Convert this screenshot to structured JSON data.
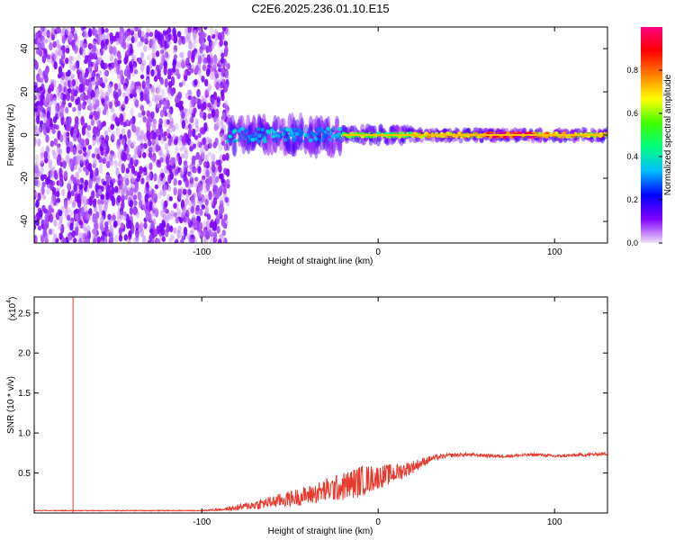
{
  "title": "C2E6.2025.236.01.10.E15",
  "chart_data": [
    {
      "type": "heatmap",
      "name": "spectrogram",
      "xlabel": "Height of straight line (km)",
      "ylabel": "Frequency (Hz)",
      "xlim": [
        -195,
        130
      ],
      "ylim": [
        -50,
        50
      ],
      "xticks": [
        -100,
        0,
        100
      ],
      "yticks": [
        -40,
        -20,
        0,
        20,
        40
      ],
      "colorbar": {
        "label": "Normalized spectral amplitude",
        "range": [
          0.0,
          1.0
        ],
        "ticks": [
          0.0,
          0.2,
          0.4,
          0.6,
          0.8
        ],
        "colormap": [
          "#f0e0f8",
          "#8000ff",
          "#0000ff",
          "#00c0ff",
          "#00ff80",
          "#40ff00",
          "#ffff00",
          "#ff8000",
          "#ff0000",
          "#ff0080"
        ]
      },
      "regions": [
        {
          "x_range": [
            -195,
            -85
          ],
          "freq_range": [
            -50,
            50
          ],
          "amplitude": 0.1,
          "description": "broadband noise"
        },
        {
          "x_range": [
            -85,
            -20
          ],
          "freq_center": 0,
          "freq_halfwidth": 8,
          "amplitude": 0.35
        },
        {
          "x_range": [
            -20,
            20
          ],
          "freq_center": 0,
          "freq_halfwidth": 4,
          "amplitude": 0.6
        },
        {
          "x_range": [
            20,
            130
          ],
          "freq_center": 0,
          "freq_halfwidth": 3,
          "amplitude": 0.75
        },
        {
          "x_range": [
            60,
            90
          ],
          "freq_center": 0,
          "freq_halfwidth": 1,
          "amplitude": 0.95
        }
      ]
    },
    {
      "type": "line",
      "name": "snr",
      "xlabel": "Height of straight line (km)",
      "ylabel": "SNR (10 * v/v)",
      "ymultiplier": "(x10",
      "ymultiplier_exp": "4",
      "ymultiplier_close": ")",
      "xlim": [
        -195,
        130
      ],
      "ylim": [
        0,
        2.7
      ],
      "xticks": [
        -100,
        0,
        100
      ],
      "yticks": [
        0.5,
        1.0,
        1.5,
        2.0,
        2.5
      ],
      "ytick_labels": [
        "0.5",
        "1.0",
        "1.5",
        "2.0",
        "2.5"
      ],
      "color": "#e8392c",
      "spike": {
        "x": -173,
        "value": 2.7
      },
      "series": [
        {
          "name": "SNR",
          "x": [
            -195,
            -150,
            -100,
            -85,
            -70,
            -60,
            -50,
            -40,
            -30,
            -20,
            -10,
            0,
            10,
            20,
            30,
            40,
            50,
            60,
            70,
            80,
            90,
            100,
            110,
            120,
            130
          ],
          "values": [
            0.03,
            0.03,
            0.03,
            0.05,
            0.1,
            0.14,
            0.18,
            0.22,
            0.28,
            0.33,
            0.4,
            0.45,
            0.5,
            0.58,
            0.68,
            0.72,
            0.73,
            0.72,
            0.71,
            0.72,
            0.73,
            0.71,
            0.72,
            0.73,
            0.74
          ],
          "noise": [
            0.005,
            0.005,
            0.006,
            0.02,
            0.06,
            0.08,
            0.1,
            0.12,
            0.15,
            0.18,
            0.2,
            0.15,
            0.12,
            0.08,
            0.04,
            0.025,
            0.02,
            0.02,
            0.02,
            0.02,
            0.02,
            0.02,
            0.02,
            0.02,
            0.02
          ]
        }
      ]
    }
  ]
}
